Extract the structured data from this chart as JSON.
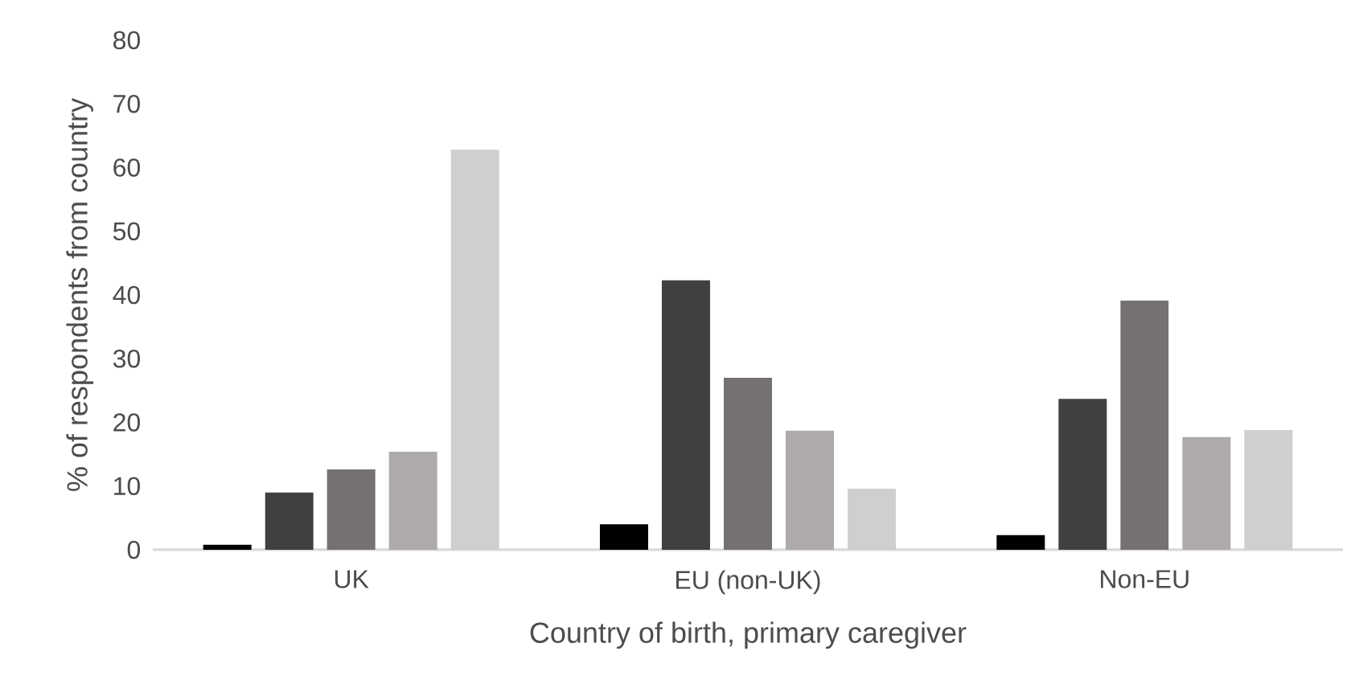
{
  "chart_data": {
    "type": "bar",
    "xlabel": "Country of birth, primary caregiver",
    "ylabel": "% of respondents from country",
    "categories": [
      "UK",
      "EU (non-UK)",
      "Non-EU"
    ],
    "series": [
      {
        "color": "#000000",
        "values": [
          0.8,
          4.0,
          2.3
        ]
      },
      {
        "color": "#404040",
        "values": [
          9.0,
          42.3,
          23.7
        ]
      },
      {
        "color": "#767171",
        "values": [
          12.6,
          27.0,
          39.1
        ]
      },
      {
        "color": "#aeaaaa",
        "values": [
          15.4,
          18.7,
          17.7
        ]
      },
      {
        "color": "#d0cece",
        "values": [
          62.8,
          9.6,
          18.8
        ]
      }
    ],
    "ylim": [
      0,
      80
    ],
    "yticks": [
      0,
      10,
      20,
      30,
      40,
      50,
      60,
      70,
      80
    ],
    "grid": false
  }
}
